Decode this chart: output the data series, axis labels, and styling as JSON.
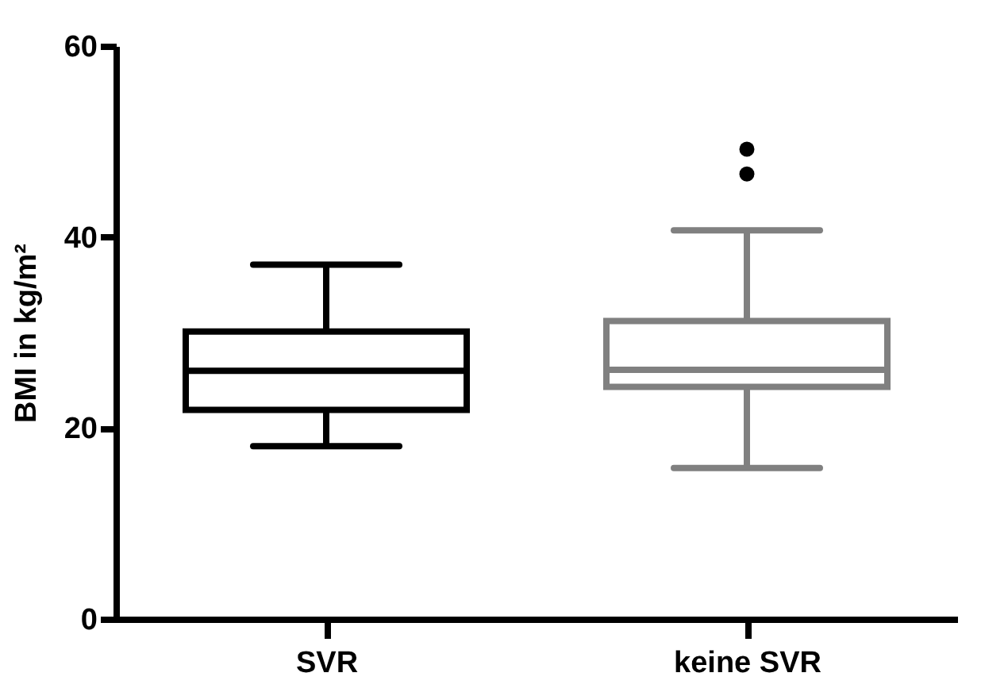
{
  "chart_data": {
    "type": "box",
    "ylabel": "BMI in kg/m²",
    "categories": [
      "SVR",
      "keine SVR"
    ],
    "colors": [
      "#000000",
      "#808080"
    ],
    "boxes": [
      {
        "low": 18.1,
        "q1": 21.9,
        "median": 26.0,
        "q3": 30.1,
        "high": 37.1
      },
      {
        "low": 15.8,
        "q1": 24.3,
        "median": 26.1,
        "q3": 31.2,
        "high": 40.7,
        "outliers": [
          49.2,
          46.6
        ]
      }
    ],
    "ylim": [
      0,
      60
    ],
    "yticks": [
      0,
      20,
      40,
      60
    ],
    "grid": false
  }
}
